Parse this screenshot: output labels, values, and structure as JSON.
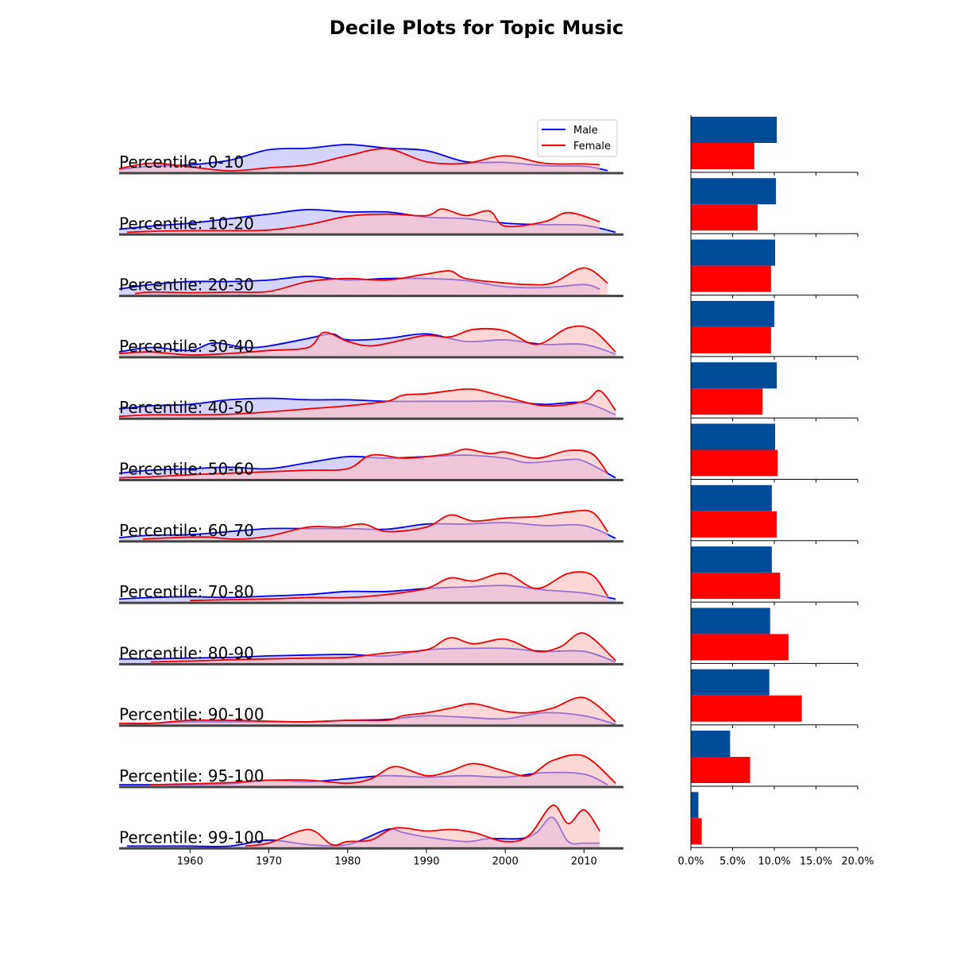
{
  "chart_data": [
    {
      "type": "area",
      "title": "Decile Plots for Topic Music",
      "xlabel": "",
      "ylabel": "",
      "xlim": [
        1951,
        2015
      ],
      "xticks": [
        1960,
        1970,
        1980,
        1990,
        2000,
        2010
      ],
      "legend": {
        "placement": "top-right",
        "entries": [
          "Male",
          "Female"
        ]
      },
      "series_colors": {
        "Male": "#0000ee",
        "Female": "#ee0000"
      },
      "fill_colors": {
        "Male": "#b8b8ff",
        "Female": "#ffbcbc",
        "overlap": "#cc88c0"
      },
      "rows": [
        {
          "label": "Percentile: 0-10",
          "male": {
            "x": [
              1951,
              1955,
              1960,
              1965,
              1970,
              1975,
              1980,
              1985,
              1990,
              1995,
              2000,
              2005,
              2010,
              2013
            ],
            "y": [
              0.1,
              0.2,
              0.25,
              0.4,
              0.75,
              0.8,
              0.92,
              0.8,
              0.72,
              0.35,
              0.33,
              0.22,
              0.2,
              0.06
            ]
          },
          "female": {
            "x": [
              1951,
              1955,
              1960,
              1965,
              1970,
              1975,
              1980,
              1985,
              1990,
              1995,
              2000,
              2005,
              2010,
              2012
            ],
            "y": [
              0.12,
              0.3,
              0.18,
              0.05,
              0.15,
              0.25,
              0.55,
              0.78,
              0.35,
              0.3,
              0.55,
              0.3,
              0.28,
              0.25
            ]
          }
        },
        {
          "label": "Percentile: 10-20",
          "male": {
            "x": [
              1951,
              1955,
              1960,
              1965,
              1970,
              1975,
              1980,
              1985,
              1990,
              1995,
              2000,
              2005,
              2010,
              2014
            ],
            "y": [
              0.15,
              0.25,
              0.35,
              0.5,
              0.65,
              0.8,
              0.72,
              0.72,
              0.55,
              0.5,
              0.35,
              0.3,
              0.28,
              0.05
            ]
          },
          "female": {
            "x": [
              1952,
              1955,
              1960,
              1965,
              1970,
              1975,
              1980,
              1985,
              1990,
              1992,
              1995,
              1998,
              2000,
              2005,
              2008,
              2012
            ],
            "y": [
              0.05,
              0.08,
              0.1,
              0.1,
              0.12,
              0.3,
              0.58,
              0.65,
              0.6,
              0.82,
              0.6,
              0.75,
              0.25,
              0.4,
              0.7,
              0.4
            ]
          }
        },
        {
          "label": "Percentile: 20-30",
          "male": {
            "x": [
              1951,
              1955,
              1960,
              1965,
              1970,
              1975,
              1980,
              1985,
              1990,
              1995,
              2000,
              2005,
              2010,
              2012
            ],
            "y": [
              0.2,
              0.35,
              0.45,
              0.45,
              0.5,
              0.62,
              0.5,
              0.55,
              0.55,
              0.48,
              0.28,
              0.25,
              0.35,
              0.2
            ]
          },
          "female": {
            "x": [
              1953,
              1955,
              1960,
              1965,
              1970,
              1975,
              1980,
              1985,
              1990,
              1993,
              1995,
              2000,
              2003,
              2006,
              2010,
              2013
            ],
            "y": [
              0.05,
              0.1,
              0.08,
              0.1,
              0.12,
              0.45,
              0.55,
              0.5,
              0.7,
              0.8,
              0.55,
              0.4,
              0.35,
              0.4,
              0.9,
              0.4
            ]
          }
        },
        {
          "label": "Percentile: 30-40",
          "male": {
            "x": [
              1951,
              1955,
              1960,
              1963,
              1967,
              1970,
              1975,
              1978,
              1980,
              1985,
              1990,
              1995,
              2000,
              2005,
              2010,
              2014
            ],
            "y": [
              0.15,
              0.3,
              0.2,
              0.45,
              0.3,
              0.35,
              0.6,
              0.75,
              0.55,
              0.6,
              0.75,
              0.5,
              0.55,
              0.4,
              0.4,
              0.08
            ]
          },
          "female": {
            "x": [
              1951,
              1955,
              1960,
              1965,
              1970,
              1975,
              1977,
              1980,
              1983,
              1987,
              1990,
              1993,
              1996,
              2000,
              2004,
              2008,
              2011,
              2014
            ],
            "y": [
              0.1,
              0.15,
              0.05,
              0.1,
              0.2,
              0.3,
              0.8,
              0.5,
              0.35,
              0.55,
              0.7,
              0.65,
              0.9,
              0.85,
              0.4,
              0.95,
              0.9,
              0.15
            ]
          }
        },
        {
          "label": "Percentile: 40-50",
          "male": {
            "x": [
              1951,
              1955,
              1960,
              1965,
              1970,
              1975,
              1980,
              1985,
              1990,
              1995,
              2000,
              2005,
              2010,
              2014
            ],
            "y": [
              0.3,
              0.4,
              0.45,
              0.6,
              0.65,
              0.6,
              0.6,
              0.55,
              0.55,
              0.55,
              0.55,
              0.45,
              0.5,
              0.1
            ]
          },
          "female": {
            "x": [
              1951,
              1955,
              1960,
              1965,
              1970,
              1975,
              1980,
              1985,
              1987,
              1990,
              1993,
              1996,
              2000,
              2005,
              2010,
              2012,
              2014
            ],
            "y": [
              0.05,
              0.1,
              0.1,
              0.12,
              0.2,
              0.3,
              0.4,
              0.55,
              0.75,
              0.8,
              0.9,
              0.95,
              0.7,
              0.4,
              0.55,
              0.9,
              0.25
            ]
          }
        },
        {
          "label": "Percentile: 50-60",
          "male": {
            "x": [
              1951,
              1955,
              1960,
              1965,
              1970,
              1975,
              1980,
              1985,
              1990,
              1995,
              2000,
              2003,
              2008,
              2010,
              2014
            ],
            "y": [
              0.2,
              0.3,
              0.35,
              0.4,
              0.35,
              0.55,
              0.75,
              0.7,
              0.75,
              0.8,
              0.7,
              0.55,
              0.65,
              0.6,
              0.05
            ]
          },
          "female": {
            "x": [
              1951,
              1955,
              1960,
              1965,
              1970,
              1975,
              1980,
              1983,
              1987,
              1990,
              1993,
              1995,
              1998,
              2000,
              2004,
              2008,
              2011,
              2013
            ],
            "y": [
              0.05,
              0.08,
              0.15,
              0.2,
              0.25,
              0.3,
              0.35,
              0.8,
              0.7,
              0.75,
              0.85,
              1.0,
              0.85,
              0.9,
              0.7,
              0.95,
              0.85,
              0.2
            ]
          }
        },
        {
          "label": "Percentile: 60-70",
          "male": {
            "x": [
              1951,
              1955,
              1960,
              1965,
              1970,
              1975,
              1980,
              1985,
              1990,
              1995,
              2000,
              2005,
              2010,
              2014
            ],
            "y": [
              0.1,
              0.18,
              0.2,
              0.3,
              0.4,
              0.4,
              0.4,
              0.38,
              0.55,
              0.55,
              0.6,
              0.5,
              0.5,
              0.08
            ]
          },
          "female": {
            "x": [
              1954,
              1958,
              1962,
              1966,
              1970,
              1975,
              1979,
              1982,
              1985,
              1990,
              1993,
              1996,
              2000,
              2004,
              2008,
              2011,
              2013
            ],
            "y": [
              0.05,
              0.1,
              0.12,
              0.05,
              0.15,
              0.45,
              0.45,
              0.55,
              0.3,
              0.45,
              0.85,
              0.65,
              0.75,
              0.8,
              0.95,
              0.95,
              0.3
            ]
          }
        },
        {
          "label": "Percentile: 70-80",
          "male": {
            "x": [
              1951,
              1955,
              1960,
              1965,
              1970,
              1975,
              1980,
              1985,
              1990,
              1995,
              2000,
              2005,
              2010,
              2014
            ],
            "y": [
              0.1,
              0.15,
              0.18,
              0.15,
              0.2,
              0.25,
              0.35,
              0.35,
              0.45,
              0.5,
              0.55,
              0.4,
              0.3,
              0.1
            ]
          },
          "female": {
            "x": [
              1960,
              1965,
              1970,
              1975,
              1980,
              1985,
              1990,
              1993,
              1996,
              2000,
              2004,
              2008,
              2011,
              2013
            ],
            "y": [
              0.05,
              0.08,
              0.1,
              0.15,
              0.15,
              0.25,
              0.45,
              0.8,
              0.7,
              0.95,
              0.45,
              0.95,
              0.9,
              0.2
            ]
          }
        },
        {
          "label": "Percentile: 80-90",
          "male": {
            "x": [
              1951,
              1955,
              1960,
              1965,
              1970,
              1975,
              1980,
              1985,
              1990,
              1995,
              2000,
              2005,
              2010,
              2014
            ],
            "y": [
              0.15,
              0.15,
              0.18,
              0.2,
              0.25,
              0.28,
              0.3,
              0.25,
              0.45,
              0.5,
              0.5,
              0.4,
              0.4,
              0.05
            ]
          },
          "female": {
            "x": [
              1955,
              1960,
              1965,
              1970,
              1975,
              1980,
              1985,
              1990,
              1993,
              1996,
              2000,
              2004,
              2007,
              2010,
              2014
            ],
            "y": [
              0.05,
              0.08,
              0.12,
              0.15,
              0.18,
              0.2,
              0.35,
              0.45,
              0.85,
              0.65,
              0.8,
              0.4,
              0.55,
              1.0,
              0.1
            ]
          }
        },
        {
          "label": "Percentile: 90-100",
          "male": {
            "x": [
              1951,
              1955,
              1960,
              1965,
              1970,
              1975,
              1980,
              1985,
              1990,
              1995,
              2000,
              2005,
              2010,
              2014
            ],
            "y": [
              0.05,
              0.05,
              0.1,
              0.1,
              0.1,
              0.1,
              0.15,
              0.18,
              0.3,
              0.25,
              0.2,
              0.4,
              0.3,
              0.02
            ]
          },
          "female": {
            "x": [
              1951,
              1955,
              1960,
              1965,
              1970,
              1975,
              1980,
              1985,
              1987,
              1990,
              1993,
              1996,
              2000,
              2003,
              2006,
              2010,
              2014
            ],
            "y": [
              0.05,
              0.05,
              0.15,
              0.15,
              0.12,
              0.1,
              0.15,
              0.15,
              0.3,
              0.4,
              0.55,
              0.7,
              0.45,
              0.4,
              0.55,
              0.9,
              0.1
            ]
          }
        },
        {
          "label": "Percentile: 95-100",
          "male": {
            "x": [
              1951,
              1955,
              1960,
              1965,
              1970,
              1975,
              1980,
              1985,
              1990,
              1995,
              2000,
              2005,
              2010,
              2013
            ],
            "y": [
              0.05,
              0.05,
              0.05,
              0.08,
              0.2,
              0.15,
              0.25,
              0.35,
              0.3,
              0.35,
              0.3,
              0.45,
              0.4,
              0.05
            ]
          },
          "female": {
            "x": [
              1955,
              1960,
              1965,
              1970,
              1975,
              1980,
              1983,
              1986,
              1990,
              1993,
              1996,
              2000,
              2003,
              2006,
              2010,
              2014
            ],
            "y": [
              0.05,
              0.08,
              0.12,
              0.2,
              0.2,
              0.1,
              0.25,
              0.65,
              0.35,
              0.5,
              0.75,
              0.5,
              0.35,
              0.85,
              1.0,
              0.1
            ]
          }
        },
        {
          "label": "Percentile: 99-100",
          "male": {
            "x": [
              1952,
              1955,
              1960,
              1965,
              1970,
              1975,
              1980,
              1985,
              1987,
              1990,
              1995,
              1998,
              2002,
              2004,
              2006,
              2008,
              2010,
              2012
            ],
            "y": [
              0.05,
              0.05,
              0.05,
              0.05,
              0.25,
              0.1,
              0.1,
              0.6,
              0.5,
              0.35,
              0.2,
              0.3,
              0.3,
              0.5,
              1.0,
              0.2,
              0.15,
              0.15
            ]
          },
          "female": {
            "x": [
              1967,
              1970,
              1975,
              1978,
              1980,
              1983,
              1986,
              1990,
              1993,
              1996,
              2000,
              2003,
              2006,
              2008,
              2010,
              2012
            ],
            "y": [
              0.05,
              0.15,
              0.6,
              0.1,
              0.2,
              0.25,
              0.65,
              0.55,
              0.6,
              0.5,
              0.2,
              0.4,
              1.4,
              0.8,
              1.25,
              0.55
            ]
          }
        }
      ]
    },
    {
      "type": "bar",
      "orientation": "horizontal",
      "xlim": [
        0,
        20
      ],
      "xticks": [
        "0.0%",
        "5.0%",
        "10.0%",
        "15.0%",
        "20.0%"
      ],
      "series_colors": {
        "Male": "#004c99",
        "Female": "#ff0000"
      },
      "categories": [
        "Percentile: 0-10",
        "Percentile: 10-20",
        "Percentile: 20-30",
        "Percentile: 30-40",
        "Percentile: 40-50",
        "Percentile: 50-60",
        "Percentile: 60-70",
        "Percentile: 70-80",
        "Percentile: 80-90",
        "Percentile: 90-100",
        "Percentile: 95-100",
        "Percentile: 99-100"
      ],
      "series": [
        {
          "name": "Male",
          "values": [
            10.3,
            10.2,
            10.1,
            10.0,
            10.3,
            10.1,
            9.7,
            9.7,
            9.5,
            9.4,
            4.7,
            0.9
          ]
        },
        {
          "name": "Female",
          "values": [
            7.6,
            8.0,
            9.6,
            9.6,
            8.6,
            10.4,
            10.3,
            10.7,
            11.7,
            13.3,
            7.1,
            1.3
          ]
        }
      ]
    }
  ]
}
